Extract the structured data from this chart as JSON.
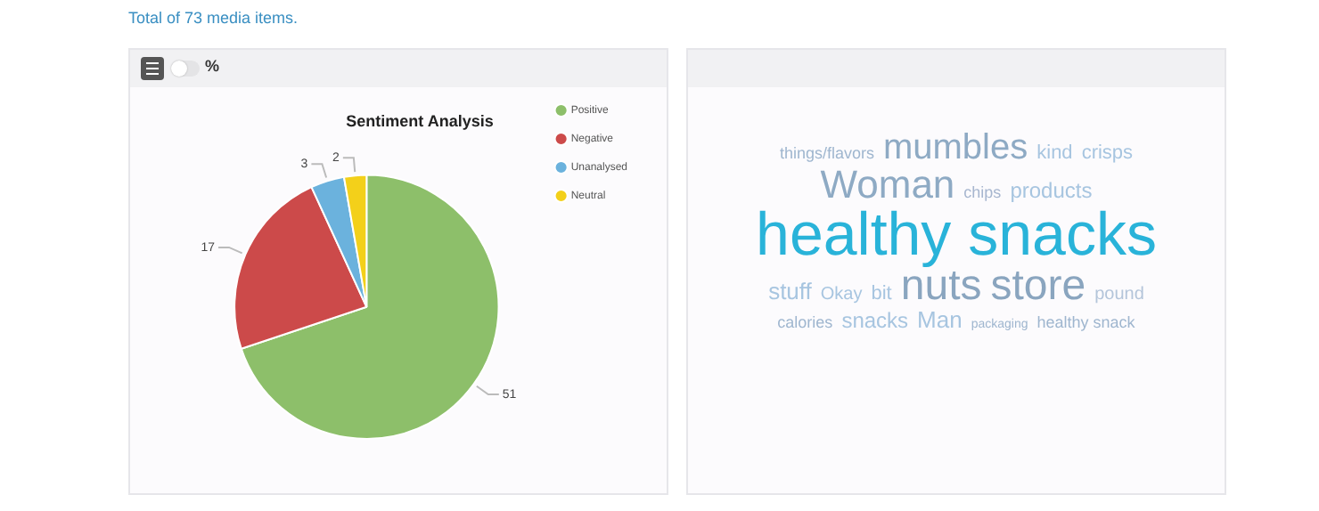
{
  "chart_data": [
    {
      "type": "pie",
      "title": "Sentiment Analysis",
      "categories": [
        "Positive",
        "Negative",
        "Unanalysed",
        "Neutral"
      ],
      "values": [
        51,
        17,
        3,
        2
      ],
      "colors": [
        "#8dbf6a",
        "#cc4a4a",
        "#6bb2dd",
        "#f3d01a"
      ],
      "data_labels": true,
      "legend": "top right",
      "annotations": [
        "Total of 73 media items.",
        "%"
      ]
    },
    {
      "type": "other",
      "annotations": [
        "things/flavors",
        "mumbles",
        "kind",
        "crisps",
        "Woman",
        "chips",
        "products",
        "healthy snacks",
        "stuff",
        "Okay",
        "bit",
        "nuts",
        "store",
        "pound",
        "calories",
        "snacks",
        "Man",
        "packaging",
        "healthy snack"
      ]
    }
  ]
}
